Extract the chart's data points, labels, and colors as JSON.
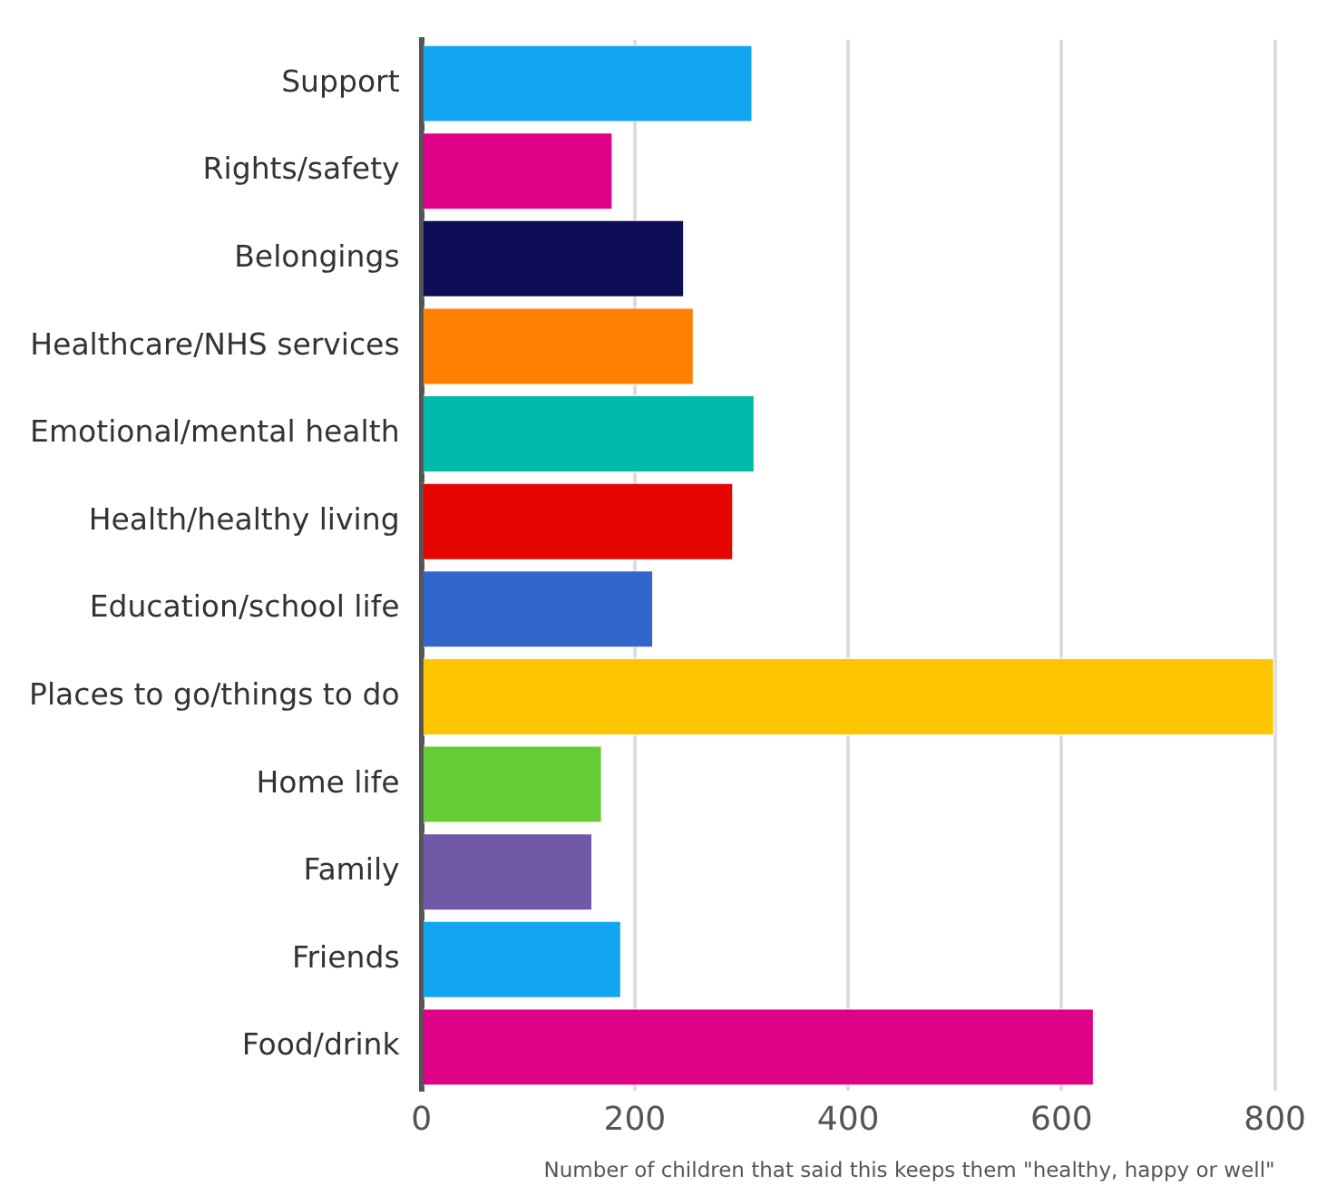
{
  "chart_data": {
    "type": "bar",
    "orientation": "horizontal",
    "xlabel": "Number of children that said this keeps them \"healthy, happy or well\"",
    "categories": [
      "Support",
      "Rights/safety",
      "Belongings",
      "Healthcare/NHS services",
      "Emotional/mental health",
      "Health/healthy living",
      "Education/school life",
      "Places to go/things to do",
      "Home life",
      "Family",
      "Friends",
      "Food/drink"
    ],
    "values": [
      311,
      180,
      247,
      256,
      313,
      293,
      218,
      800,
      170,
      161,
      188,
      631
    ],
    "colors": [
      "#12a6f2",
      "#de0087",
      "#0e0e56",
      "#ff8000",
      "#00bba9",
      "#e50601",
      "#3366cc",
      "#fdc400",
      "#66cc33",
      "#7059a6",
      "#12a6f2",
      "#de0087"
    ],
    "xlim": [
      0,
      800
    ],
    "xticks": [
      0,
      200,
      400,
      600,
      800
    ],
    "grid": "x",
    "legend": false
  }
}
